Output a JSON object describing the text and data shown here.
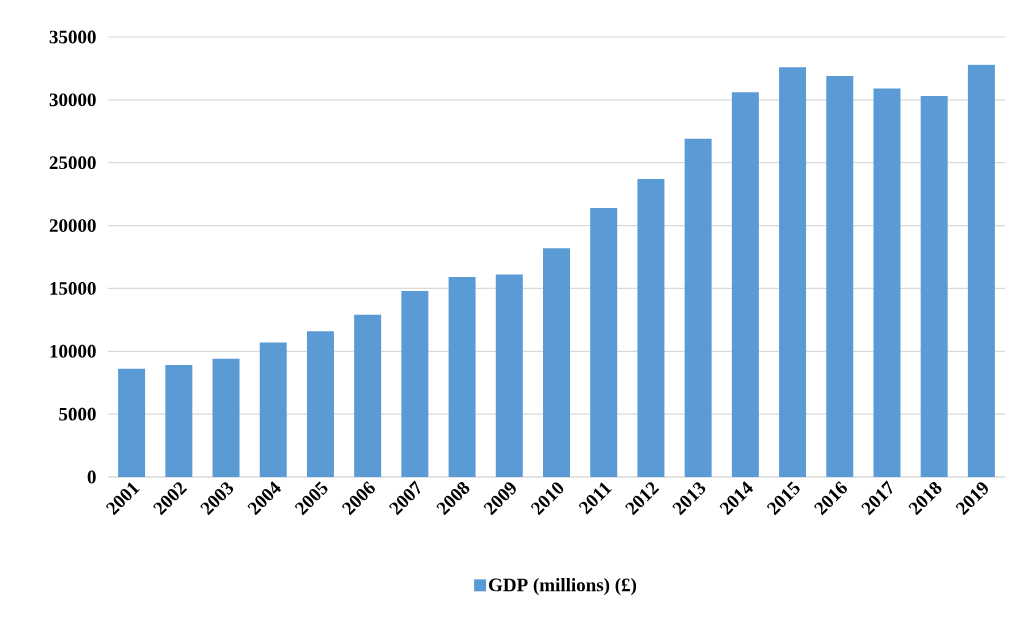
{
  "chart_data": {
    "type": "bar",
    "categories": [
      "2001",
      "2002",
      "2003",
      "2004",
      "2005",
      "2006",
      "2007",
      "2008",
      "2009",
      "2010",
      "2011",
      "2012",
      "2013",
      "2014",
      "2015",
      "2016",
      "2017",
      "2018",
      "2019"
    ],
    "series": [
      {
        "name": "GDP (millions) (£)",
        "color": "#5b9bd5",
        "values": [
          8600,
          8900,
          9400,
          10700,
          11600,
          12900,
          14800,
          15900,
          16100,
          18200,
          21400,
          23700,
          26900,
          30600,
          32600,
          31900,
          30900,
          30300,
          32800
        ]
      }
    ],
    "ylim": [
      0,
      35000
    ],
    "yticks": [
      0,
      5000,
      10000,
      15000,
      20000,
      25000,
      30000,
      35000
    ],
    "grid": "y",
    "legend": "bottom"
  }
}
